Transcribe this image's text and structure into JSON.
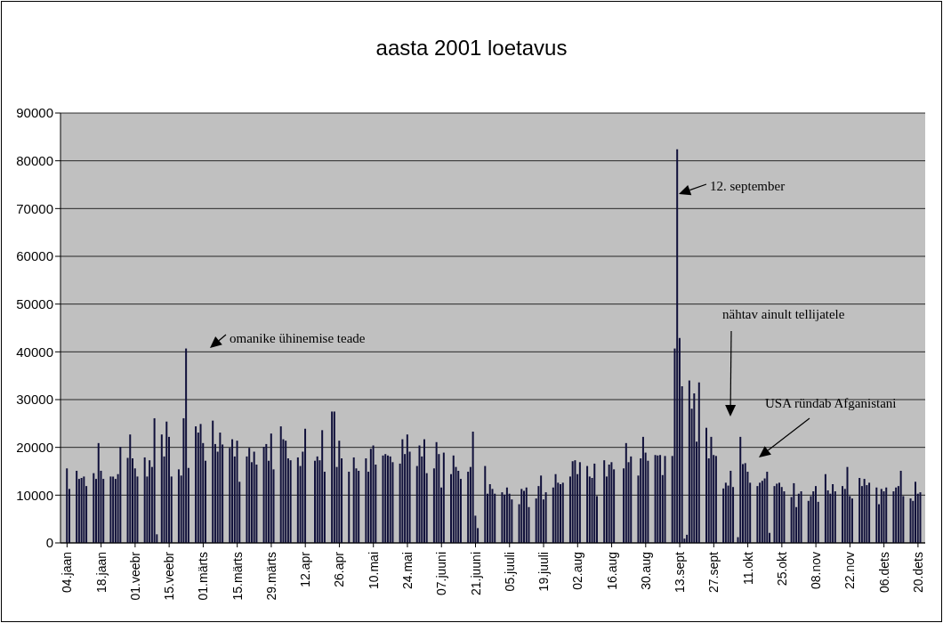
{
  "chart_data": {
    "type": "bar",
    "title": "aasta 2001 loetavus",
    "categories": [
      "04.jaan",
      null,
      null,
      null,
      null,
      null,
      null,
      null,
      null,
      null,
      null,
      null,
      null,
      null,
      "18.jaan",
      null,
      null,
      null,
      null,
      null,
      null,
      null,
      null,
      null,
      null,
      null,
      null,
      null,
      "01.veebr",
      null,
      null,
      null,
      null,
      null,
      null,
      null,
      null,
      null,
      null,
      null,
      null,
      null,
      "15.veebr",
      null,
      null,
      null,
      null,
      null,
      null,
      null,
      null,
      null,
      null,
      null,
      null,
      null,
      "01.märts",
      null,
      null,
      null,
      null,
      null,
      null,
      null,
      null,
      null,
      null,
      null,
      null,
      null,
      "15.märts",
      null,
      null,
      null,
      null,
      null,
      null,
      null,
      null,
      null,
      null,
      null,
      null,
      null,
      "29.märts",
      null,
      null,
      null,
      null,
      null,
      null,
      null,
      null,
      null,
      null,
      null,
      null,
      null,
      "12.apr",
      null,
      null,
      null,
      null,
      null,
      null,
      null,
      null,
      null,
      null,
      null,
      null,
      null,
      "26.apr",
      null,
      null,
      null,
      null,
      null,
      null,
      null,
      null,
      null,
      null,
      null,
      null,
      null,
      "10.mai",
      null,
      null,
      null,
      null,
      null,
      null,
      null,
      null,
      null,
      null,
      null,
      null,
      null,
      "24.mai",
      null,
      null,
      null,
      null,
      null,
      null,
      null,
      null,
      null,
      null,
      null,
      null,
      null,
      "07.juuni",
      null,
      null,
      null,
      null,
      null,
      null,
      null,
      null,
      null,
      null,
      null,
      null,
      null,
      "21.juuni",
      null,
      null,
      null,
      null,
      null,
      null,
      null,
      null,
      null,
      null,
      null,
      null,
      null,
      "05.juuli",
      null,
      null,
      null,
      null,
      null,
      null,
      null,
      null,
      null,
      null,
      null,
      null,
      null,
      "19.juuli",
      null,
      null,
      null,
      null,
      null,
      null,
      null,
      null,
      null,
      null,
      null,
      null,
      null,
      "02.aug",
      null,
      null,
      null,
      null,
      null,
      null,
      null,
      null,
      null,
      null,
      null,
      null,
      null,
      "16.aug",
      null,
      null,
      null,
      null,
      null,
      null,
      null,
      null,
      null,
      null,
      null,
      null,
      null,
      "30.aug",
      null,
      null,
      null,
      null,
      null,
      null,
      null,
      null,
      null,
      null,
      null,
      null,
      null,
      "13.sept",
      null,
      null,
      null,
      null,
      null,
      null,
      null,
      null,
      null,
      null,
      null,
      null,
      null,
      "27.sept",
      null,
      null,
      null,
      null,
      null,
      null,
      null,
      null,
      null,
      null,
      null,
      null,
      null,
      "11.okt",
      null,
      null,
      null,
      null,
      null,
      null,
      null,
      null,
      null,
      null,
      null,
      null,
      null,
      "25.okt",
      null,
      null,
      null,
      null,
      null,
      null,
      null,
      null,
      null,
      null,
      null,
      null,
      null,
      "08.nov",
      null,
      null,
      null,
      null,
      null,
      null,
      null,
      null,
      null,
      null,
      null,
      null,
      null,
      "22.nov",
      null,
      null,
      null,
      null,
      null,
      null,
      null,
      null,
      null,
      null,
      null,
      null,
      null,
      "06.dets",
      null,
      null,
      null,
      null,
      null,
      null,
      null,
      null,
      null,
      null,
      null,
      null,
      null,
      "20.dets",
      null
    ],
    "values": [
      15600,
      11300,
      null,
      null,
      15100,
      13400,
      13600,
      13900,
      11900,
      null,
      null,
      14600,
      13400,
      20900,
      15100,
      13400,
      null,
      null,
      13900,
      13900,
      13400,
      14400,
      20100,
      null,
      null,
      17800,
      22700,
      17700,
      15600,
      13900,
      null,
      null,
      17900,
      13900,
      17300,
      15900,
      26100,
      1800,
      null,
      22700,
      18100,
      25400,
      22200,
      13900,
      null,
      null,
      15400,
      14100,
      26100,
      40700,
      15700,
      null,
      null,
      24400,
      23100,
      24900,
      20900,
      17200,
      null,
      null,
      25600,
      20700,
      19100,
      23100,
      20600,
      null,
      null,
      19900,
      21700,
      18100,
      21400,
      12800,
      null,
      null,
      18100,
      19900,
      16900,
      19100,
      16400,
      null,
      null,
      20100,
      20700,
      17200,
      22900,
      15400,
      null,
      null,
      24400,
      21700,
      21400,
      17700,
      17300,
      null,
      null,
      17900,
      16100,
      19100,
      23900,
      null,
      null,
      null,
      17200,
      18100,
      17300,
      23600,
      14900,
      null,
      null,
      27500,
      27500,
      15900,
      21400,
      17700,
      null,
      null,
      14900,
      null,
      17900,
      15600,
      15100,
      null,
      null,
      17700,
      14900,
      19700,
      20400,
      16400,
      null,
      null,
      18300,
      18600,
      18300,
      18100,
      16900,
      null,
      null,
      16600,
      21700,
      18600,
      22700,
      19100,
      null,
      null,
      16100,
      20400,
      18100,
      21700,
      14600,
      null,
      null,
      15600,
      21100,
      18600,
      11600,
      18900,
      null,
      null,
      14400,
      18300,
      15900,
      15100,
      13400,
      null,
      null,
      14900,
      15900,
      23300,
      5700,
      3100,
      null,
      null,
      16100,
      10300,
      12300,
      11300,
      10300,
      null,
      null,
      10600,
      10100,
      11600,
      10300,
      9100,
      null,
      null,
      8100,
      11300,
      10900,
      11600,
      7500,
      null,
      null,
      9300,
      11900,
      14100,
      9100,
      10600,
      null,
      null,
      11600,
      14400,
      12600,
      12300,
      12600,
      null,
      null,
      13900,
      17100,
      17300,
      14400,
      16900,
      null,
      null,
      16100,
      13900,
      13600,
      16600,
      9800,
      null,
      null,
      17300,
      13900,
      16400,
      16900,
      15400,
      null,
      null,
      null,
      15600,
      20900,
      16900,
      18100,
      null,
      null,
      14100,
      17700,
      22200,
      18900,
      17200,
      null,
      null,
      18400,
      18300,
      18400,
      14200,
      18200,
      null,
      null,
      18200,
      40700,
      82400,
      42900,
      32800,
      900,
      1700,
      34000,
      28100,
      31300,
      21200,
      33600,
      null,
      null,
      24100,
      17700,
      22200,
      18400,
      18200,
      null,
      null,
      11400,
      12600,
      12000,
      15100,
      11700,
      null,
      1200,
      22200,
      16500,
      16700,
      14900,
      12600,
      null,
      null,
      11900,
      12600,
      13000,
      13500,
      14900,
      2100,
      null,
      11900,
      12400,
      12600,
      11700,
      10800,
      null,
      null,
      9600,
      12500,
      7500,
      10300,
      10800,
      null,
      null,
      8800,
      9800,
      10800,
      11900,
      8600,
      null,
      null,
      14400,
      11000,
      10300,
      12300,
      10800,
      null,
      null,
      11900,
      11300,
      15900,
      9800,
      9300,
      null,
      null,
      13600,
      11900,
      13400,
      12100,
      12600,
      null,
      null,
      11600,
      8100,
      11300,
      10800,
      11600,
      null,
      null,
      10800,
      11600,
      11900,
      15100,
      9800,
      null,
      null,
      9300,
      8800,
      12800,
      10300,
      10600
    ],
    "color": "#10103a",
    "ylim": [
      0,
      90000
    ],
    "yticks": [
      0,
      10000,
      20000,
      30000,
      40000,
      50000,
      60000,
      70000,
      80000,
      90000
    ],
    "grid": "y",
    "legend": false,
    "annotations": [
      "omanike ühinemise teade",
      "12. september",
      "nähtav ainult tellijatele",
      "USA ründab Afganistani"
    ]
  }
}
